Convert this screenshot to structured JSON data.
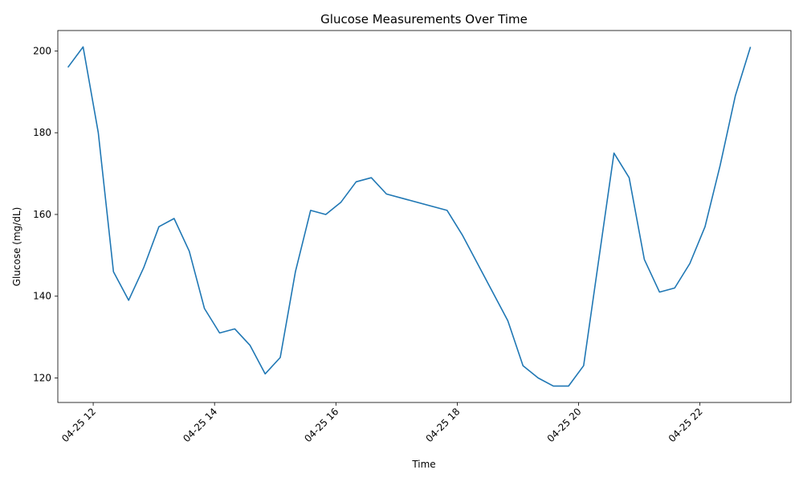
{
  "chart_data": {
    "type": "line",
    "title": "Glucose Measurements Over Time",
    "xlabel": "Time",
    "ylabel": "Glucose (mg/dL)",
    "grid": false,
    "legend": "none",
    "x_tick_labels": [
      "04-25 12",
      "04-25 14",
      "04-25 16",
      "04-25 18",
      "04-25 20",
      "04-25 22"
    ],
    "x_ticks": [
      "2024-04-25 12:00",
      "2024-04-25 14:00",
      "2024-04-25 16:00",
      "2024-04-25 18:00",
      "2024-04-25 20:00",
      "2024-04-25 22:00"
    ],
    "xlim": [
      "2024-04-25 11:25",
      "2024-04-25 23:30"
    ],
    "ylim": [
      114,
      205
    ],
    "y_ticks": [
      120,
      140,
      160,
      180,
      200
    ],
    "series": [
      {
        "color": "#1f77b4",
        "x": [
          "2024-04-25 11:35",
          "2024-04-25 11:50",
          "2024-04-25 12:05",
          "2024-04-25 12:20",
          "2024-04-25 12:35",
          "2024-04-25 12:50",
          "2024-04-25 13:05",
          "2024-04-25 13:20",
          "2024-04-25 13:35",
          "2024-04-25 13:50",
          "2024-04-25 14:05",
          "2024-04-25 14:20",
          "2024-04-25 14:35",
          "2024-04-25 14:50",
          "2024-04-25 15:05",
          "2024-04-25 15:20",
          "2024-04-25 15:35",
          "2024-04-25 15:50",
          "2024-04-25 16:05",
          "2024-04-25 16:20",
          "2024-04-25 16:35",
          "2024-04-25 16:50",
          "2024-04-25 17:50",
          "2024-04-25 18:05",
          "2024-04-25 18:50",
          "2024-04-25 19:05",
          "2024-04-25 19:20",
          "2024-04-25 19:35",
          "2024-04-25 19:50",
          "2024-04-25 20:05",
          "2024-04-25 20:20",
          "2024-04-25 20:35",
          "2024-04-25 20:50",
          "2024-04-25 21:05",
          "2024-04-25 21:20",
          "2024-04-25 21:35",
          "2024-04-25 21:50",
          "2024-04-25 22:05",
          "2024-04-25 22:20",
          "2024-04-25 22:35",
          "2024-04-25 22:50"
        ],
        "values": [
          196,
          201,
          180,
          146,
          139,
          147,
          157,
          159,
          151,
          137,
          131,
          132,
          128,
          121,
          125,
          146,
          161,
          160,
          163,
          168,
          169,
          165,
          161,
          155,
          134,
          123,
          120,
          118,
          118,
          123,
          149,
          175,
          169,
          149,
          141,
          142,
          148,
          157,
          172,
          189,
          201
        ]
      }
    ]
  }
}
